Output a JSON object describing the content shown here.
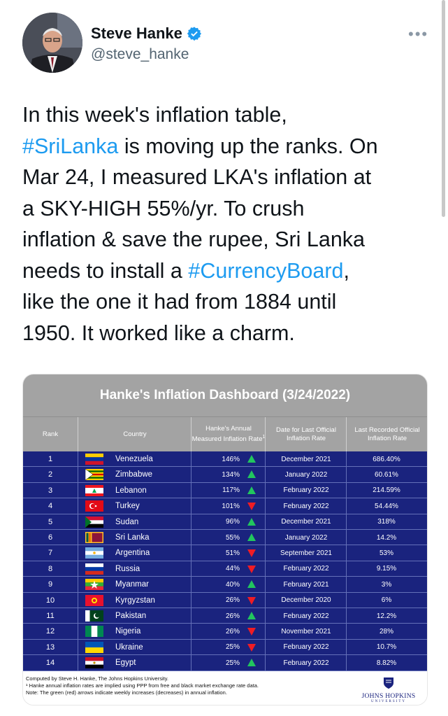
{
  "author": {
    "name": "Steve Hanke",
    "handle": "@steve_hanke",
    "more_icon": "more-dots-icon",
    "verified_icon": "verified-badge-icon"
  },
  "tweet": {
    "parts": [
      "In this week's inflation table,\n",
      "#SriLanka",
      " is moving up the ranks. On\nMar 24, I measured LKA's inflation at\na SKY-HIGH 55%/yr. To crush\ninflation & save the rupee, Sri Lanka\nneeds to install a ",
      "#CurrencyBoard",
      ",\nlike the one it had from 1884 until\n1950. It worked like a charm."
    ]
  },
  "dashboard": {
    "title": "Hanke's Inflation Dashboard (3/24/2022)",
    "headers": {
      "rank": "Rank",
      "country": "Country",
      "annual_rate": "Hanke's Annual Measured Inflation Rate",
      "annual_rate_sup": "1",
      "last_date": "Date for Last Official Inflation Rate",
      "last_rate": "Last Recorded Official Inflation Rate"
    },
    "colors": {
      "row_bg": "#1a237e",
      "header_bg": "#a3a3a3",
      "up": "#22c55e",
      "down": "#ef1c24"
    },
    "rows": [
      {
        "rank": "1",
        "country": "Venezuela",
        "rate": "146%",
        "trend": "up",
        "date": "December 2021",
        "last": "686.40%"
      },
      {
        "rank": "2",
        "country": "Zimbabwe",
        "rate": "134%",
        "trend": "up",
        "date": "January 2022",
        "last": "60.61%"
      },
      {
        "rank": "3",
        "country": "Lebanon",
        "rate": "117%",
        "trend": "up",
        "date": "February 2022",
        "last": "214.59%"
      },
      {
        "rank": "4",
        "country": "Turkey",
        "rate": "101%",
        "trend": "down",
        "date": "February 2022",
        "last": "54.44%"
      },
      {
        "rank": "5",
        "country": "Sudan",
        "rate": "96%",
        "trend": "up",
        "date": "December 2021",
        "last": "318%"
      },
      {
        "rank": "6",
        "country": "Sri Lanka",
        "rate": "55%",
        "trend": "up",
        "date": "January 2022",
        "last": "14.2%"
      },
      {
        "rank": "7",
        "country": "Argentina",
        "rate": "51%",
        "trend": "down",
        "date": "September 2021",
        "last": "53%"
      },
      {
        "rank": "8",
        "country": "Russia",
        "rate": "44%",
        "trend": "down",
        "date": "February 2022",
        "last": "9.15%"
      },
      {
        "rank": "9",
        "country": "Myanmar",
        "rate": "40%",
        "trend": "up",
        "date": "February 2021",
        "last": "3%"
      },
      {
        "rank": "10",
        "country": "Kyrgyzstan",
        "rate": "26%",
        "trend": "down",
        "date": "December 2020",
        "last": "6%"
      },
      {
        "rank": "11",
        "country": "Pakistan",
        "rate": "26%",
        "trend": "up",
        "date": "February 2022",
        "last": "12.2%"
      },
      {
        "rank": "12",
        "country": "Nigeria",
        "rate": "26%",
        "trend": "down",
        "date": "November 2021",
        "last": "28%"
      },
      {
        "rank": "13",
        "country": "Ukraine",
        "rate": "25%",
        "trend": "down",
        "date": "February 2022",
        "last": "10.7%"
      },
      {
        "rank": "14",
        "country": "Egypt",
        "rate": "25%",
        "trend": "up",
        "date": "February 2022",
        "last": "8.82%"
      }
    ],
    "footnotes": [
      "Computed by Steve H. Hanke, The Johns Hopkins University.",
      "¹ Hanke annual inflation rates are implied using PPP from free and black market exchange rate data.",
      "Note: The green (red) arrows indicate weekly increases (decreases) in annual inflation."
    ],
    "logo_text": "JOHNS HOPKINS",
    "logo_sub": "UNIVERSITY"
  }
}
